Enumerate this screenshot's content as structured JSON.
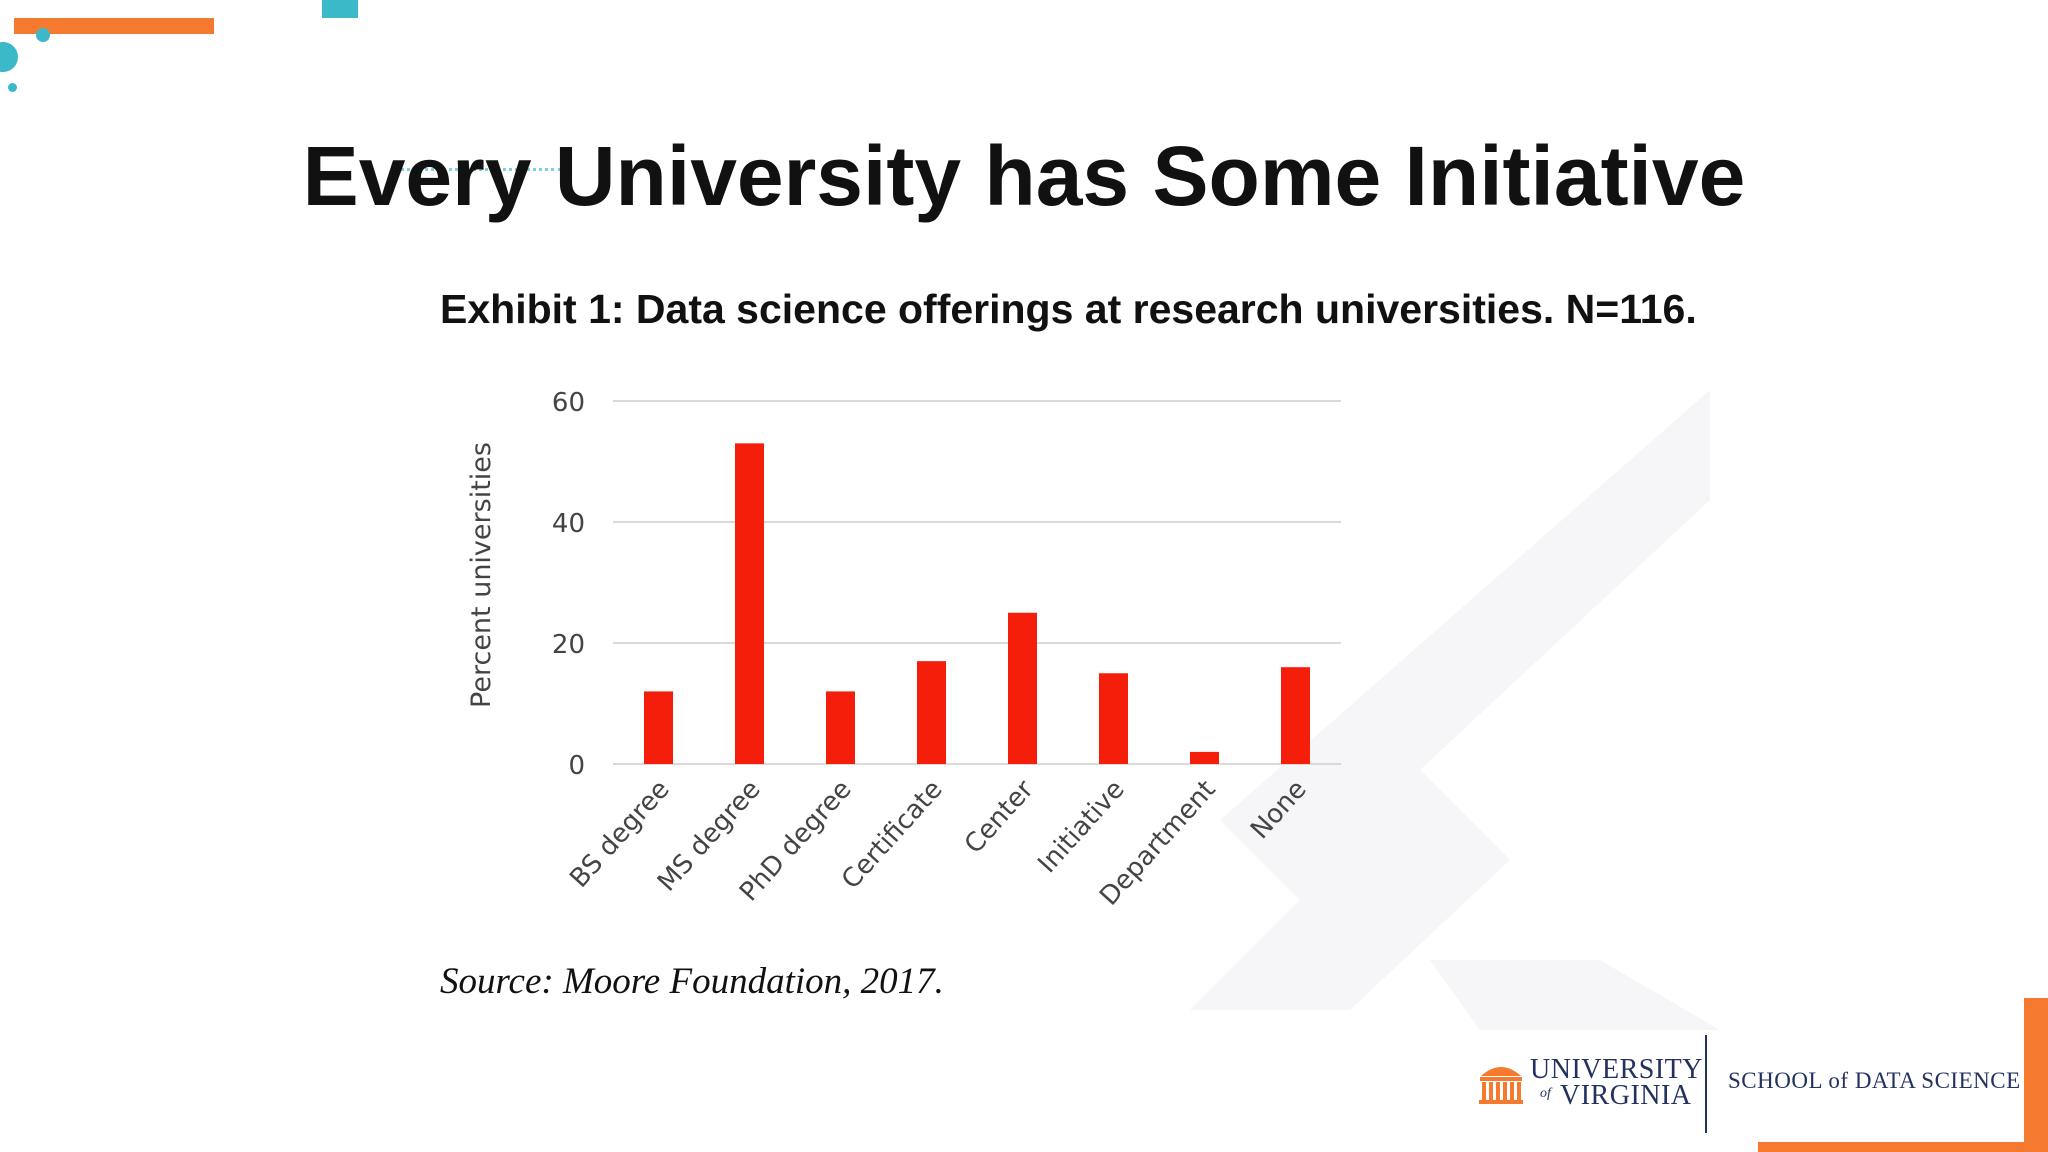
{
  "slide": {
    "title": "Every University has Some Initiative"
  },
  "colors": {
    "bar": "#f51e0a",
    "accent_orange": "#f5792f",
    "accent_teal": "#3bb9c9",
    "gridline": "#d9d9d9",
    "uva_navy": "#23315e"
  },
  "chart_data": {
    "type": "bar",
    "title": "Exhibit 1: Data science offerings at research universities. N=116.",
    "xlabel": "",
    "ylabel": "Percent universities",
    "categories": [
      "BS degree",
      "MS degree",
      "PhD degree",
      "Certificate",
      "Center",
      "Initiative",
      "Department",
      "None"
    ],
    "values": [
      12,
      53,
      12,
      17,
      25,
      15,
      2,
      16
    ],
    "ylim": [
      0,
      60
    ],
    "yticks": [
      0,
      20,
      40,
      60
    ],
    "grid": true,
    "legend": "none"
  },
  "source_note": "Source: Moore Foundation, 2017.",
  "footer": {
    "university_line1": "UNIVERSITY",
    "university_of": "of",
    "university_line2": "VIRGINIA",
    "school": "SCHOOL of DATA SCIENCE"
  }
}
